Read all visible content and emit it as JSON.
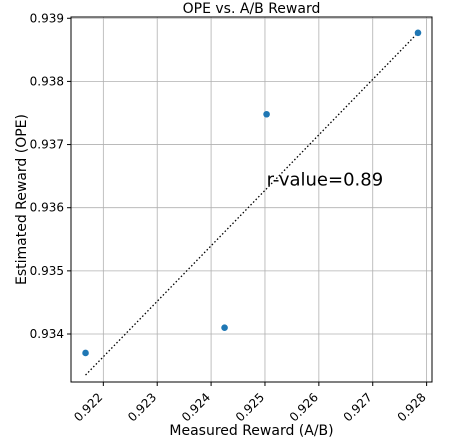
{
  "chart_data": {
    "type": "scatter",
    "title": "OPE vs. A/B Reward",
    "xlabel": "Measured Reward (A/B)",
    "ylabel": "Estimated Reward (OPE)",
    "xlim": [
      0.9214,
      0.9281
    ],
    "ylim": [
      0.93324,
      0.93902
    ],
    "xticks": [
      0.922,
      0.923,
      0.924,
      0.925,
      0.926,
      0.927,
      0.928
    ],
    "yticks": [
      0.934,
      0.935,
      0.936,
      0.937,
      0.938,
      0.939
    ],
    "xtick_labels": [
      "0.922",
      "0.923",
      "0.924",
      "0.925",
      "0.926",
      "0.927",
      "0.928"
    ],
    "ytick_labels": [
      "0.934",
      "0.935",
      "0.936",
      "0.937",
      "0.938",
      "0.939"
    ],
    "grid": true,
    "points": [
      {
        "x": 0.92167,
        "y": 0.9337
      },
      {
        "x": 0.92425,
        "y": 0.9341
      },
      {
        "x": 0.92503,
        "y": 0.93748
      },
      {
        "x": 0.92784,
        "y": 0.93877
      }
    ],
    "trendline": {
      "style": "dotted",
      "x": [
        0.92167,
        0.92784
      ],
      "y": [
        0.93335,
        0.93877
      ]
    },
    "annotation": {
      "text": "r-value=0.89",
      "x": 0.92503,
      "y": 0.93645
    },
    "point_color": "#1f77b4",
    "grid_color": "#b0b0b0"
  }
}
